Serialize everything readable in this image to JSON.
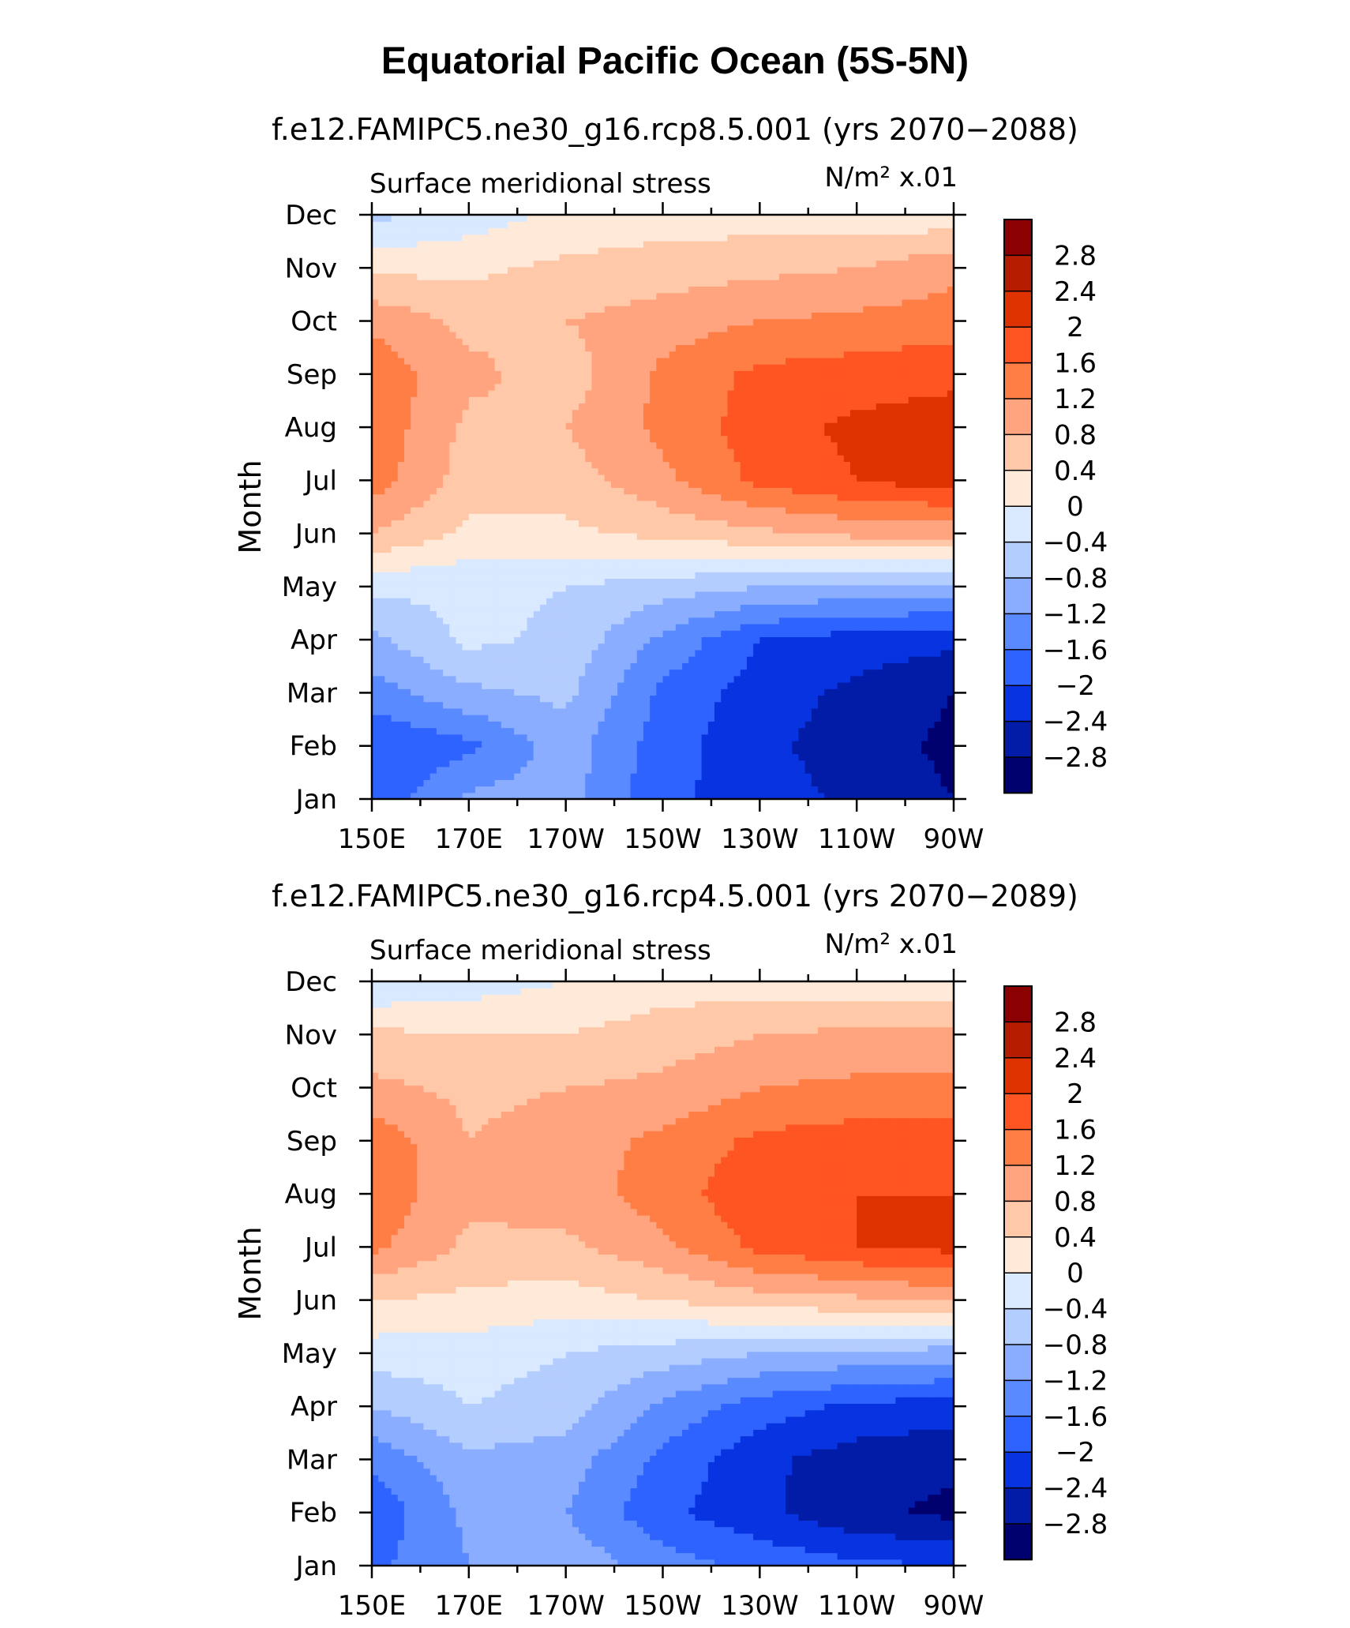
{
  "title": "Equatorial Pacific Ocean (5S-5N)",
  "chart_data": [
    {
      "type": "heatmap",
      "subtitle": "f.e12.FAMIPC5.ne30_g16.rcp8.5.001 (yrs 2070−2088)",
      "left_label": "Surface meridional stress",
      "units_label": "N/m² x.01",
      "ylabel": "Month",
      "x": [
        "150E",
        "170E",
        "170W",
        "150W",
        "130W",
        "110W",
        "90W"
      ],
      "y": [
        "Jan",
        "Feb",
        "Mar",
        "Apr",
        "May",
        "Jun",
        "Jul",
        "Aug",
        "Sep",
        "Oct",
        "Nov",
        "Dec"
      ],
      "values": [
        [
          -1.9,
          -1.1,
          -1.0,
          -1.9,
          -2.2,
          -2.5,
          -2.8
        ],
        [
          -2.0,
          -1.7,
          -1.0,
          -1.8,
          -2.3,
          -2.6,
          -2.9
        ],
        [
          -1.4,
          -0.9,
          -0.7,
          -1.7,
          -2.2,
          -2.5,
          -2.8
        ],
        [
          -0.9,
          -0.3,
          -0.5,
          -1.3,
          -2.0,
          -2.2,
          -2.3
        ],
        [
          -0.3,
          -0.3,
          -0.4,
          -0.6,
          -0.8,
          -0.9,
          -0.9
        ],
        [
          0.8,
          0.3,
          0.3,
          0.5,
          0.7,
          0.9,
          0.9
        ],
        [
          1.4,
          0.6,
          0.6,
          1.1,
          1.7,
          2.0,
          2.2
        ],
        [
          1.5,
          0.7,
          0.8,
          1.3,
          1.8,
          2.1,
          2.2
        ],
        [
          1.5,
          0.9,
          0.6,
          1.3,
          1.7,
          1.8,
          1.9
        ],
        [
          1.1,
          0.7,
          0.8,
          1.0,
          1.2,
          1.3,
          1.4
        ],
        [
          0.3,
          0.3,
          0.5,
          0.6,
          0.7,
          0.8,
          1.1
        ],
        [
          -0.5,
          -0.2,
          0.1,
          0.2,
          0.2,
          0.2,
          0.1
        ]
      ]
    },
    {
      "type": "heatmap",
      "subtitle": "f.e12.FAMIPC5.ne30_g16.rcp4.5.001 (yrs 2070−2089)",
      "left_label": "Surface meridional stress",
      "units_label": "N/m² x.01",
      "ylabel": "Month",
      "x": [
        "150E",
        "170E",
        "170W",
        "150W",
        "130W",
        "110W",
        "90W"
      ],
      "y": [
        "Jan",
        "Feb",
        "Mar",
        "Apr",
        "May",
        "Jun",
        "Jul",
        "Aug",
        "Sep",
        "Oct",
        "Nov",
        "Dec"
      ],
      "values": [
        [
          -1.7,
          -1.2,
          -0.9,
          -1.4,
          -1.7,
          -1.9,
          -2.0
        ],
        [
          -1.9,
          -1.1,
          -1.2,
          -1.9,
          -2.3,
          -2.7,
          -2.9
        ],
        [
          -1.5,
          -0.9,
          -1.0,
          -1.7,
          -2.3,
          -2.6,
          -2.7
        ],
        [
          -0.8,
          -0.4,
          -0.6,
          -1.3,
          -1.8,
          -2.1,
          -2.2
        ],
        [
          -0.2,
          -0.2,
          -0.4,
          -0.6,
          -0.8,
          -0.9,
          -1.0
        ],
        [
          0.4,
          0.3,
          0.2,
          0.4,
          0.6,
          0.7,
          0.9
        ],
        [
          1.3,
          0.7,
          0.7,
          1.1,
          1.7,
          2.0,
          2.1
        ],
        [
          1.5,
          0.9,
          1.0,
          1.4,
          1.9,
          2.0,
          2.0
        ],
        [
          1.5,
          0.8,
          1.0,
          1.3,
          1.7,
          1.8,
          1.8
        ],
        [
          0.9,
          0.7,
          0.8,
          0.9,
          1.2,
          1.3,
          1.3
        ],
        [
          0.5,
          0.4,
          0.4,
          0.6,
          0.8,
          0.9,
          0.9
        ],
        [
          -0.4,
          -0.2,
          0.0,
          0.2,
          0.2,
          0.1,
          0.1
        ]
      ]
    }
  ],
  "colorbar": {
    "labels": [
      "2.8",
      "2.4",
      "2",
      "1.6",
      "1.2",
      "0.8",
      "0.4",
      "0",
      "−0.4",
      "−0.8",
      "−1.2",
      "−1.6",
      "−2",
      "−2.4",
      "−2.8"
    ],
    "levels": [
      2.8,
      2.4,
      2.0,
      1.6,
      1.2,
      0.8,
      0.4,
      0.0,
      -0.4,
      -0.8,
      -1.2,
      -1.6,
      -2.0,
      -2.4,
      -2.8
    ],
    "colors": [
      "#8b0000",
      "#b51c00",
      "#de3200",
      "#ff5522",
      "#ff7e45",
      "#ffa47e",
      "#ffc8a8",
      "#ffe9d8",
      "#d9e9ff",
      "#b4cdff",
      "#8aadff",
      "#5a8aff",
      "#2f63ff",
      "#0733e0",
      "#031ca8",
      "#00006f"
    ]
  }
}
